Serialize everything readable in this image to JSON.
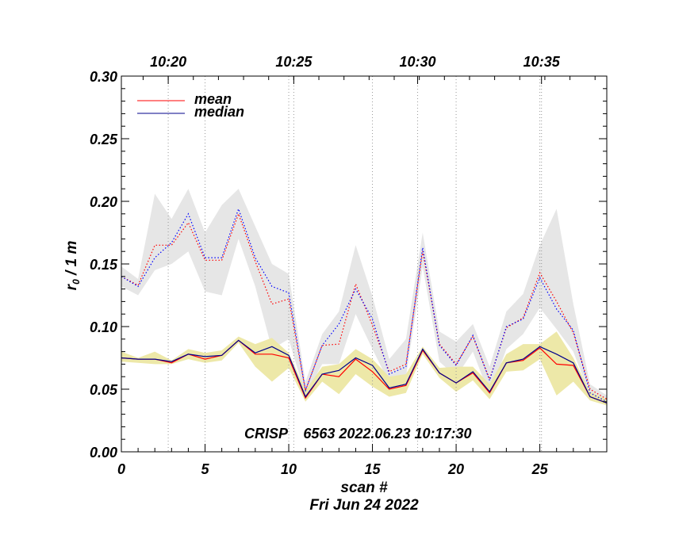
{
  "chart_data": {
    "type": "line",
    "title": "",
    "annotation": "CRISP    6563 2022.06.23 10:17:30",
    "xlabel": "scan #",
    "xlabel2": "Fri Jun 24 2022",
    "ylabel": "r",
    "ylabel_sub": "0",
    "ylabel_suffix": " / 1 m",
    "xlim": [
      0,
      29
    ],
    "ylim": [
      0,
      0.3
    ],
    "x_ticks": [
      "0",
      "5",
      "10",
      "15",
      "20",
      "25"
    ],
    "y_ticks": [
      "0.00",
      "0.05",
      "0.10",
      "0.15",
      "0.20",
      "0.25",
      "0.30"
    ],
    "top_axis_ticks": [
      {
        "scan": 2.8,
        "label": "10:20"
      },
      {
        "scan": 10.3,
        "label": "10:25"
      },
      {
        "scan": 17.7,
        "label": "10:30"
      },
      {
        "scan": 25.1,
        "label": "10:35"
      }
    ],
    "legend": [
      {
        "name": "mean",
        "color": "#ff0000"
      },
      {
        "name": "median",
        "color": "#00008b"
      }
    ],
    "x": [
      0,
      1,
      2,
      3,
      4,
      5,
      6,
      7,
      8,
      9,
      10,
      11,
      12,
      13,
      14,
      15,
      16,
      17,
      18,
      19,
      20,
      21,
      22,
      23,
      24,
      25,
      26,
      27,
      28,
      29
    ],
    "series": [
      {
        "name": "mean",
        "group": "lower",
        "style": "solid",
        "color": "#ff0000",
        "values": [
          0.075,
          0.074,
          0.074,
          0.071,
          0.078,
          0.074,
          0.077,
          0.089,
          0.078,
          0.078,
          0.075,
          0.043,
          0.062,
          0.06,
          0.074,
          0.064,
          0.05,
          0.053,
          0.081,
          0.063,
          0.055,
          0.063,
          0.047,
          0.071,
          0.073,
          0.083,
          0.07,
          0.069,
          0.044,
          0.039
        ]
      },
      {
        "name": "median",
        "group": "lower",
        "style": "solid",
        "color": "#00008b",
        "values": [
          0.075,
          0.074,
          0.074,
          0.072,
          0.078,
          0.076,
          0.077,
          0.089,
          0.079,
          0.084,
          0.077,
          0.044,
          0.062,
          0.065,
          0.075,
          0.069,
          0.051,
          0.054,
          0.082,
          0.063,
          0.055,
          0.064,
          0.048,
          0.071,
          0.074,
          0.084,
          0.078,
          0.071,
          0.044,
          0.039
        ]
      },
      {
        "name": "mean",
        "group": "upper",
        "style": "dotted",
        "color": "#ff0000",
        "values": [
          0.14,
          0.133,
          0.165,
          0.165,
          0.183,
          0.153,
          0.153,
          0.19,
          0.152,
          0.118,
          0.122,
          0.049,
          0.085,
          0.086,
          0.134,
          0.101,
          0.064,
          0.07,
          0.16,
          0.086,
          0.07,
          0.092,
          0.058,
          0.099,
          0.107,
          0.143,
          0.12,
          0.095,
          0.05,
          0.042
        ]
      },
      {
        "name": "median",
        "group": "upper",
        "style": "dotted",
        "color": "#0000ff",
        "values": [
          0.14,
          0.132,
          0.155,
          0.167,
          0.19,
          0.155,
          0.155,
          0.194,
          0.155,
          0.132,
          0.127,
          0.049,
          0.085,
          0.102,
          0.13,
          0.106,
          0.062,
          0.068,
          0.163,
          0.085,
          0.069,
          0.093,
          0.057,
          0.1,
          0.106,
          0.139,
          0.114,
          0.097,
          0.047,
          0.04
        ]
      }
    ],
    "bands": [
      {
        "name": "upper-range",
        "color": "#e6e6e6",
        "low": [
          0.132,
          0.125,
          0.145,
          0.15,
          0.16,
          0.128,
          0.125,
          0.17,
          0.132,
          0.082,
          0.09,
          0.045,
          0.07,
          0.07,
          0.11,
          0.082,
          0.055,
          0.06,
          0.148,
          0.072,
          0.06,
          0.08,
          0.045,
          0.082,
          0.094,
          0.115,
          0.098,
          0.08,
          0.045,
          0.038
        ],
        "high": [
          0.148,
          0.138,
          0.206,
          0.186,
          0.21,
          0.175,
          0.197,
          0.21,
          0.18,
          0.15,
          0.142,
          0.056,
          0.094,
          0.112,
          0.165,
          0.124,
          0.074,
          0.09,
          0.175,
          0.096,
          0.088,
          0.102,
          0.068,
          0.112,
          0.126,
          0.165,
          0.194,
          0.118,
          0.054,
          0.045
        ]
      },
      {
        "name": "lower-range",
        "color": "#ede8a8",
        "low": [
          0.072,
          0.071,
          0.07,
          0.07,
          0.074,
          0.071,
          0.073,
          0.087,
          0.068,
          0.056,
          0.067,
          0.04,
          0.056,
          0.046,
          0.062,
          0.052,
          0.044,
          0.047,
          0.078,
          0.059,
          0.048,
          0.057,
          0.042,
          0.064,
          0.065,
          0.074,
          0.045,
          0.056,
          0.041,
          0.037
        ],
        "high": [
          0.08,
          0.075,
          0.08,
          0.073,
          0.082,
          0.079,
          0.081,
          0.092,
          0.086,
          0.091,
          0.079,
          0.049,
          0.068,
          0.07,
          0.082,
          0.074,
          0.06,
          0.062,
          0.084,
          0.067,
          0.068,
          0.068,
          0.054,
          0.078,
          0.086,
          0.086,
          0.096,
          0.075,
          0.048,
          0.042
        ]
      }
    ]
  }
}
